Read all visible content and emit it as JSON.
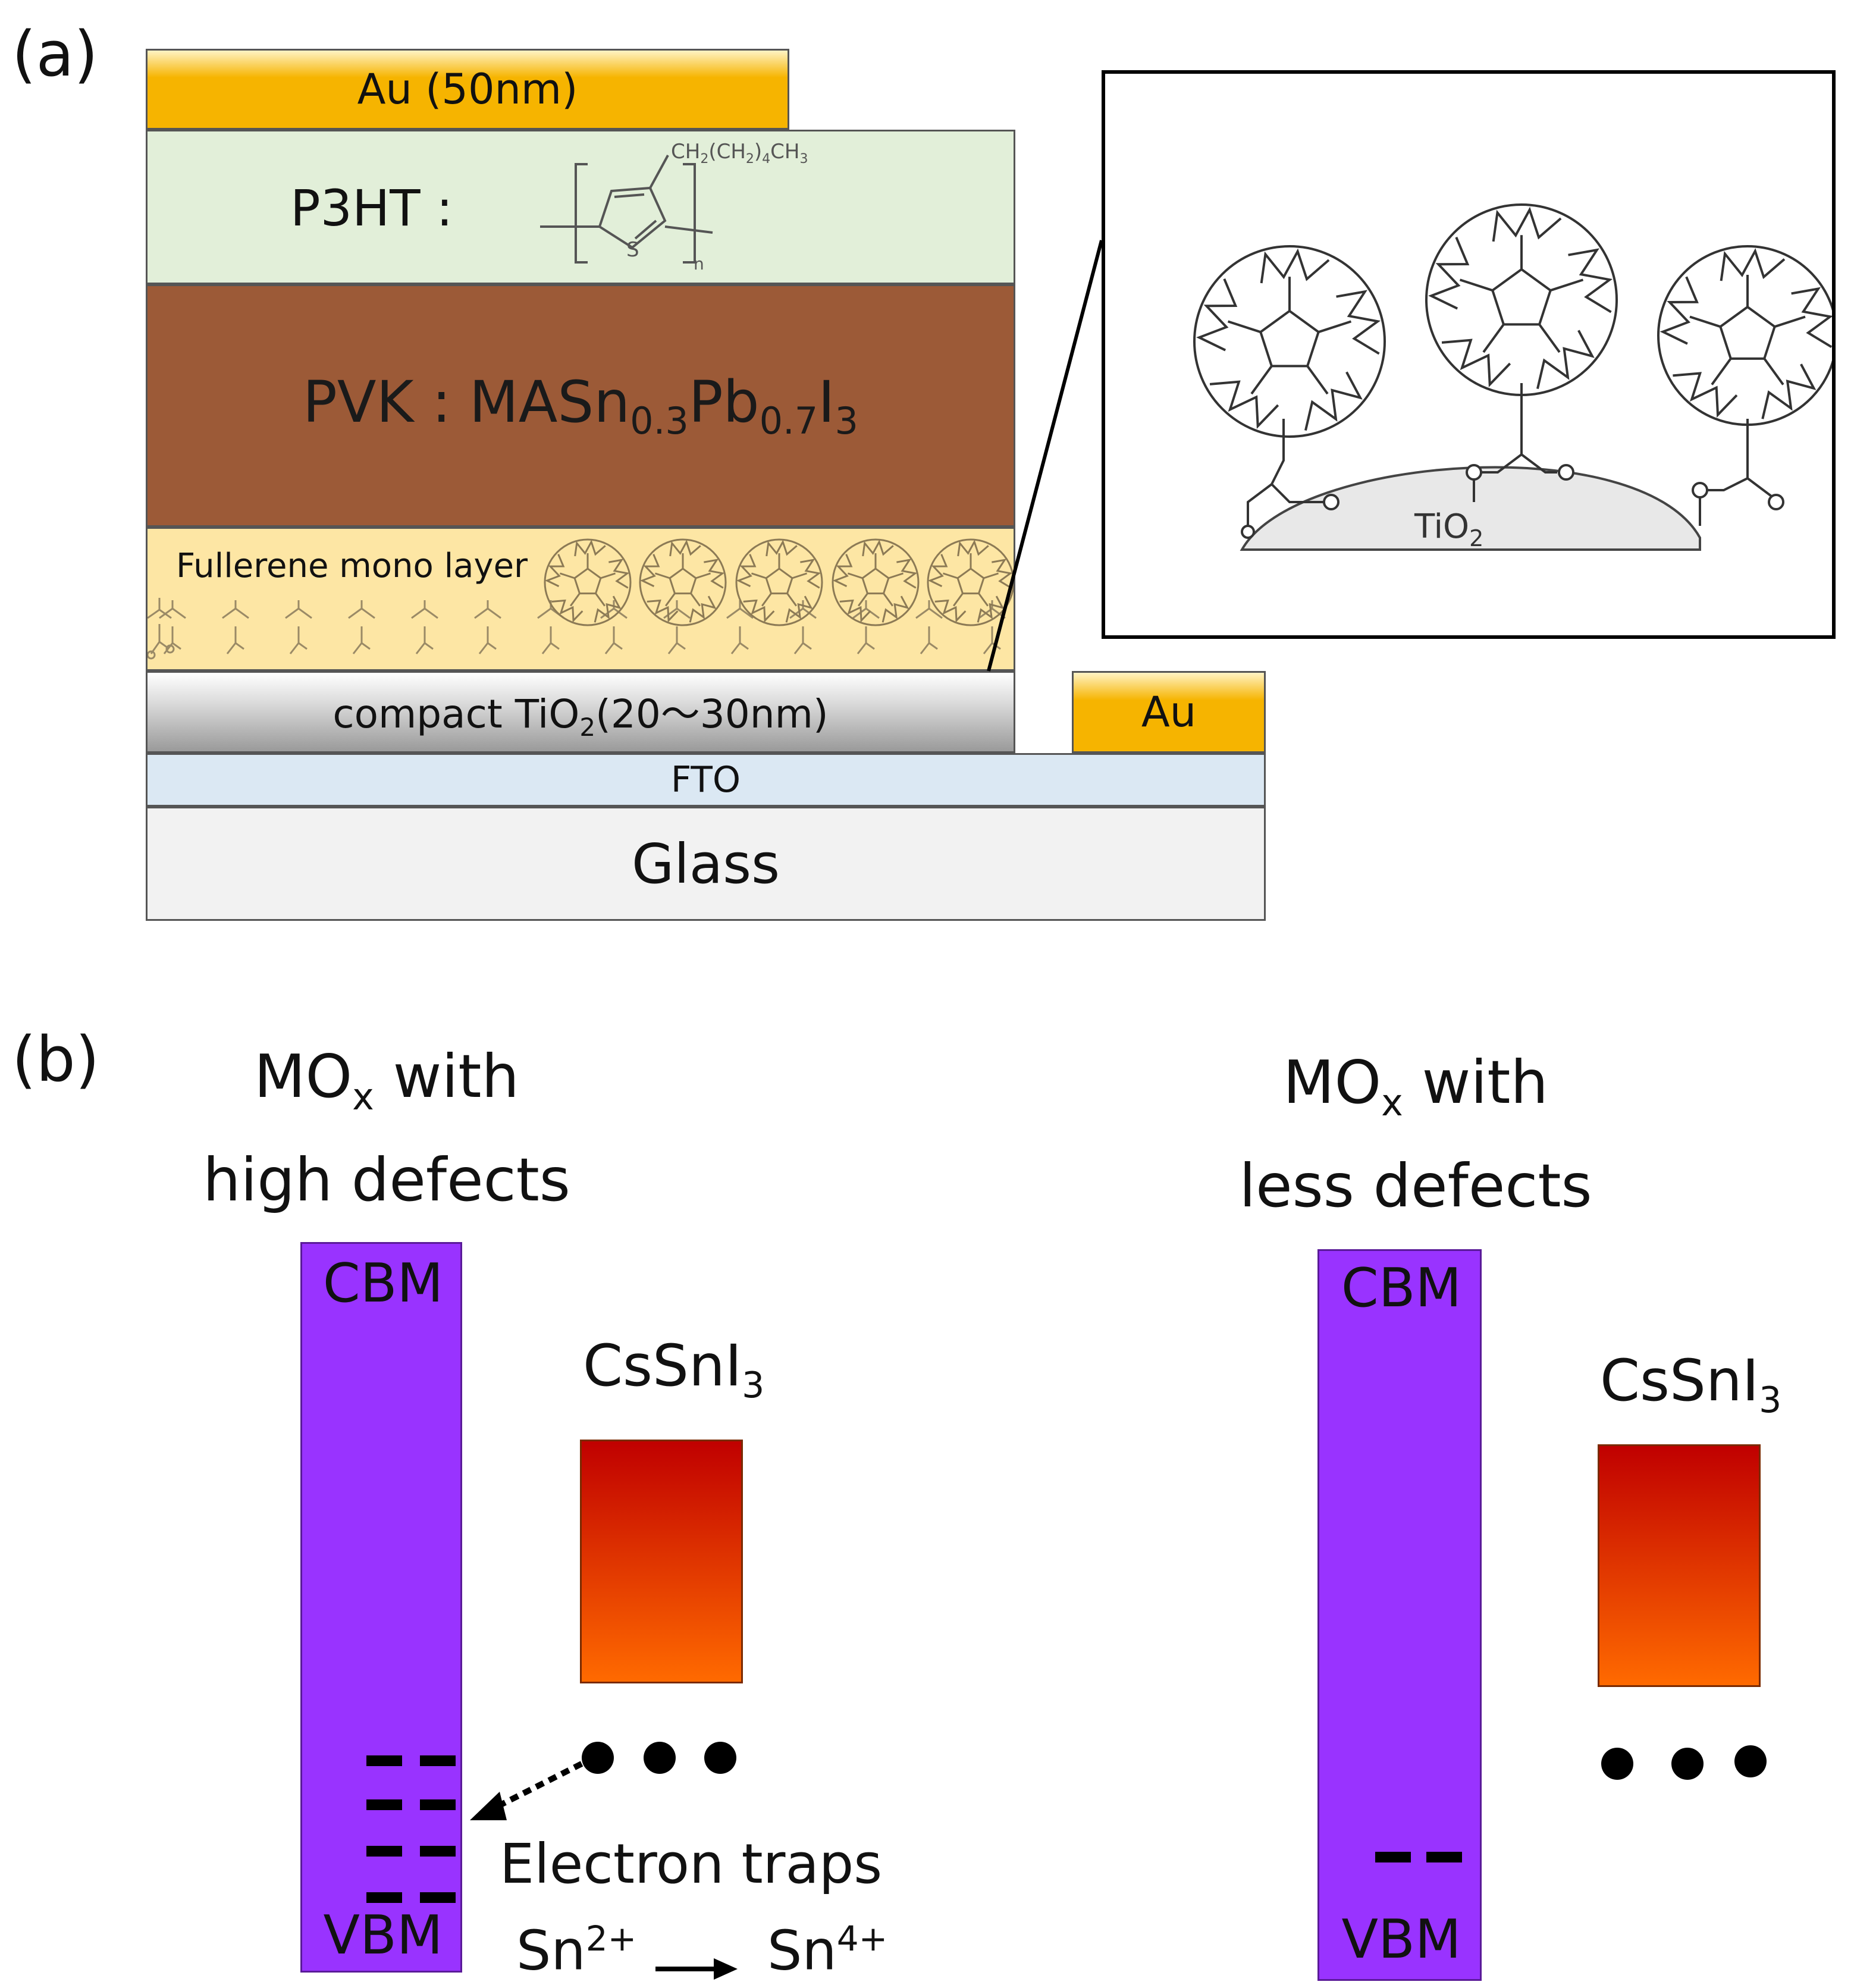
{
  "panel_a": {
    "label": "(a)",
    "layers": {
      "au_top": "Au (50nm)",
      "p3ht_label": "P3HT :",
      "p3ht_formula": {
        "side_chain": "CH",
        "side_chain_sub1": "2",
        "side_chain_mid": "(CH",
        "side_chain_sub2": "2",
        "side_chain_mid2": ")",
        "side_chain_sub3": "4",
        "side_chain_end": "CH",
        "side_chain_sub4": "3",
        "sulfur": "S",
        "repeat": "n"
      },
      "pvk_prefix": "PVK : MASn",
      "pvk_sub1": "0.3",
      "pvk_mid": "Pb",
      "pvk_sub2": "0.7",
      "pvk_mid2": "I",
      "pvk_sub3": "3",
      "fullerene": "Fullerene mono layer",
      "tio2_prefix": "compact TiO",
      "tio2_sub": "2",
      "tio2_suffix": "(20〜30nm)",
      "au_side": "Au",
      "fto": "FTO",
      "glass": "Glass"
    },
    "inset": {
      "substrate_label": "TiO",
      "substrate_sub": "2"
    }
  },
  "panel_b": {
    "label": "(b)",
    "left": {
      "title_line1_pre": "MO",
      "title_line1_sub": "x",
      "title_line1_post": " with",
      "title_line2": "high defects",
      "cbm": "CBM",
      "vbm": "VBM",
      "material_pre": "CsSnI",
      "material_sub": "3",
      "traps_label": "Electron traps",
      "reaction_left": "Sn",
      "reaction_left_sup": "2+",
      "reaction_right": "Sn",
      "reaction_right_sup": "4+"
    },
    "right": {
      "title_line1_pre": "MO",
      "title_line1_sub": "x",
      "title_line1_post": " with",
      "title_line2": "less defects",
      "cbm": "CBM",
      "vbm": "VBM",
      "material_pre": "CsSnI",
      "material_sub": "3"
    }
  },
  "colors": {
    "au": "#f6b400",
    "p3ht": "#e2efd9",
    "pvk": "#9c5a37",
    "fullerene_layer": "#fde6a4",
    "tio2": "#c8c8c8",
    "fto": "#dbe8f3",
    "glass": "#f2f2f2",
    "band": "#9933ff",
    "perovskite_top": "#c00000",
    "perovskite_bottom": "#ff6a00"
  }
}
